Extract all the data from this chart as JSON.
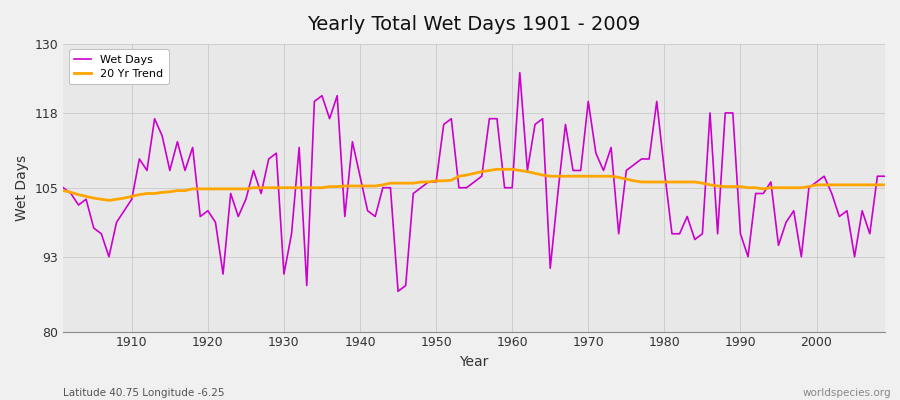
{
  "title": "Yearly Total Wet Days 1901 - 2009",
  "xlabel": "Year",
  "ylabel": "Wet Days",
  "subtitle_left": "Latitude 40.75 Longitude -6.25",
  "subtitle_right": "worldspecies.org",
  "ylim": [
    80,
    130
  ],
  "yticks": [
    80,
    93,
    105,
    118,
    130
  ],
  "xlim": [
    1901,
    2009
  ],
  "plot_bg_color": "#e8e8e8",
  "fig_bg_color": "#f0f0f0",
  "wet_days_color": "#cc00cc",
  "trend_color": "#ffa500",
  "wet_days": [
    105,
    104,
    102,
    103,
    98,
    97,
    93,
    99,
    101,
    103,
    110,
    108,
    117,
    114,
    108,
    113,
    108,
    112,
    100,
    101,
    99,
    90,
    104,
    100,
    103,
    108,
    104,
    110,
    111,
    90,
    97,
    112,
    88,
    120,
    121,
    117,
    121,
    100,
    113,
    107,
    101,
    100,
    105,
    105,
    87,
    88,
    104,
    105,
    106,
    106,
    116,
    117,
    105,
    105,
    106,
    107,
    117,
    117,
    105,
    105,
    125,
    108,
    116,
    117,
    91,
    104,
    116,
    108,
    108,
    120,
    111,
    108,
    112,
    97,
    108,
    109,
    110,
    110,
    120,
    108,
    97,
    97,
    100,
    96,
    97,
    118,
    97,
    118,
    118,
    97,
    93,
    104,
    104,
    106,
    95,
    99,
    101,
    93,
    105,
    106,
    107,
    104,
    100,
    101,
    93,
    101,
    97,
    107,
    107
  ],
  "trend": [
    104.5,
    104.2,
    103.8,
    103.5,
    103.2,
    103.0,
    102.8,
    103.0,
    103.2,
    103.5,
    103.8,
    104.0,
    104.0,
    104.2,
    104.3,
    104.5,
    104.5,
    104.8,
    104.8,
    104.8,
    104.8,
    104.8,
    104.8,
    104.8,
    104.8,
    105.0,
    105.0,
    105.0,
    105.0,
    105.0,
    105.0,
    105.0,
    105.0,
    105.0,
    105.0,
    105.2,
    105.2,
    105.3,
    105.3,
    105.3,
    105.3,
    105.3,
    105.5,
    105.8,
    105.8,
    105.8,
    105.8,
    106.0,
    106.0,
    106.2,
    106.2,
    106.3,
    107.0,
    107.2,
    107.5,
    107.8,
    108.0,
    108.2,
    108.2,
    108.2,
    108.0,
    107.8,
    107.5,
    107.2,
    107.0,
    107.0,
    107.0,
    107.0,
    107.0,
    107.0,
    107.0,
    107.0,
    107.0,
    106.8,
    106.5,
    106.2,
    106.0,
    106.0,
    106.0,
    106.0,
    106.0,
    106.0,
    106.0,
    106.0,
    105.8,
    105.5,
    105.3,
    105.2,
    105.2,
    105.2,
    105.0,
    105.0,
    104.8,
    105.0,
    105.0,
    105.0,
    105.0,
    105.0,
    105.2,
    105.5,
    105.5,
    105.5,
    105.5,
    105.5,
    105.5,
    105.5,
    105.5,
    105.5,
    105.5
  ]
}
